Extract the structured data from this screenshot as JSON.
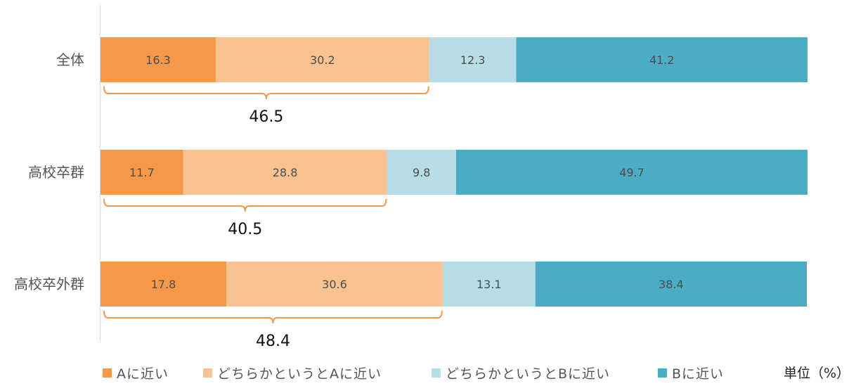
{
  "chart_data": {
    "type": "bar",
    "orientation": "horizontal",
    "stacked": true,
    "categories": [
      "全体",
      "高校卒群",
      "高校卒外群"
    ],
    "series": [
      {
        "name": "Aに近い",
        "color": "#f59847",
        "values": [
          16.3,
          11.7,
          17.8
        ]
      },
      {
        "name": "どちらかというとAに近い",
        "color": "#f8c291",
        "values": [
          30.2,
          28.8,
          30.6
        ]
      },
      {
        "name": "どちらかというとBに近い",
        "color": "#b7dde7",
        "values": [
          12.3,
          9.8,
          13.1
        ]
      },
      {
        "name": "Bに近い",
        "color": "#4bacc6",
        "values": [
          41.2,
          49.7,
          38.4
        ]
      }
    ],
    "brace_totals": [
      "46.5",
      "40.5",
      "48.4"
    ],
    "brace_color": "#f59847",
    "xlim": [
      0,
      100
    ],
    "unit_label": "単位（%）",
    "legend_position": "bottom"
  }
}
